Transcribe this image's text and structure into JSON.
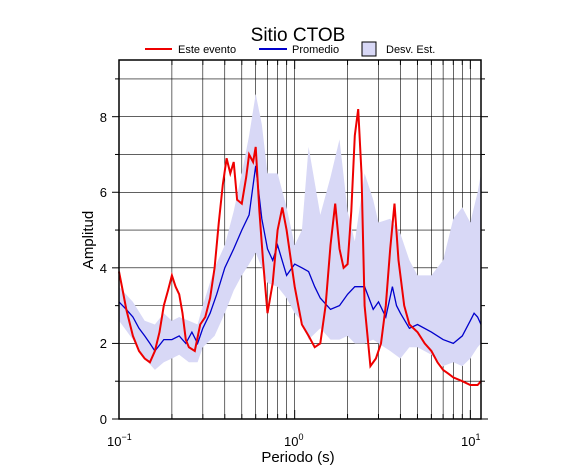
{
  "chart_data": {
    "type": "line",
    "title": "Sitio CTOB",
    "xlabel": "Periodo (s)",
    "ylabel": "Amplitud",
    "x_scale": "log",
    "xlim": [
      0.1,
      11.5
    ],
    "ylim": [
      0,
      9.5
    ],
    "x_ticks": [
      {
        "value": 0.1,
        "base": "10",
        "exp": "−1"
      },
      {
        "value": 1,
        "base": "10",
        "exp": "0"
      },
      {
        "value": 10,
        "base": "10",
        "exp": "1"
      }
    ],
    "y_ticks": [
      {
        "value": 0,
        "label": "0"
      },
      {
        "value": 2,
        "label": "2"
      },
      {
        "value": 4,
        "label": "4"
      },
      {
        "value": 6,
        "label": "6"
      },
      {
        "value": 8,
        "label": "8"
      }
    ],
    "grid": true,
    "legend_position": "top",
    "legend": [
      {
        "label": "Este evento",
        "kind": "line",
        "color": "#ee0000"
      },
      {
        "label": "Promedio",
        "kind": "line",
        "color": "#0000cc"
      },
      {
        "label": "Desv. Est.",
        "kind": "patch",
        "color": "#d8d8f6"
      }
    ],
    "std_band": {
      "name": "Desv. Est.",
      "color": "#d8d8f6",
      "x": [
        0.1,
        0.12,
        0.14,
        0.16,
        0.18,
        0.2,
        0.22,
        0.25,
        0.28,
        0.3,
        0.35,
        0.4,
        0.45,
        0.5,
        0.55,
        0.6,
        0.65,
        0.7,
        0.8,
        0.9,
        1.0,
        1.1,
        1.2,
        1.4,
        1.6,
        1.8,
        2.0,
        2.2,
        2.5,
        2.8,
        3.0,
        3.5,
        4.0,
        4.5,
        5.0,
        6.0,
        7.0,
        8.0,
        9.0,
        10.0,
        11.0,
        11.5
      ],
      "upper": [
        3.5,
        3.1,
        2.6,
        2.5,
        2.8,
        2.6,
        2.7,
        2.6,
        2.5,
        3.0,
        4.0,
        4.6,
        5.5,
        6.5,
        7.5,
        8.6,
        7.8,
        6.5,
        6.5,
        5.6,
        4.6,
        5.0,
        7.2,
        5.4,
        6.4,
        7.4,
        5.5,
        4.7,
        6.5,
        5.8,
        5.2,
        5.3,
        4.9,
        4.2,
        3.8,
        3.8,
        4.2,
        5.3,
        5.6,
        5.2,
        6.0,
        6.5
      ],
      "lower": [
        2.6,
        2.1,
        1.6,
        1.3,
        1.5,
        1.6,
        1.7,
        1.5,
        1.5,
        1.9,
        2.2,
        2.8,
        3.4,
        3.8,
        4.1,
        4.4,
        4.0,
        3.6,
        3.5,
        3.2,
        2.8,
        2.6,
        2.1,
        2.4,
        2.1,
        2.1,
        2.2,
        2.0,
        2.0,
        2.1,
        2.0,
        1.8,
        1.6,
        1.9,
        1.9,
        1.7,
        1.4,
        1.5,
        1.4,
        1.6,
        1.9,
        2.0
      ]
    },
    "series": [
      {
        "name": "Promedio",
        "color": "#0000cc",
        "x": [
          0.1,
          0.11,
          0.12,
          0.13,
          0.14,
          0.15,
          0.16,
          0.18,
          0.2,
          0.22,
          0.24,
          0.26,
          0.28,
          0.3,
          0.33,
          0.36,
          0.4,
          0.45,
          0.5,
          0.55,
          0.6,
          0.65,
          0.7,
          0.75,
          0.8,
          0.9,
          1.0,
          1.1,
          1.2,
          1.3,
          1.4,
          1.6,
          1.8,
          2.0,
          2.2,
          2.5,
          2.8,
          3.0,
          3.3,
          3.6,
          3.8,
          4.0,
          4.5,
          5.0,
          6.0,
          7.0,
          8.0,
          9.0,
          10.0,
          10.5,
          11.0,
          11.5
        ],
        "values": [
          3.1,
          2.9,
          2.7,
          2.4,
          2.2,
          2.0,
          1.8,
          2.1,
          2.1,
          2.2,
          2.0,
          2.3,
          2.0,
          2.4,
          2.8,
          3.3,
          4.0,
          4.5,
          5.0,
          5.4,
          6.7,
          5.3,
          4.5,
          4.2,
          4.6,
          3.8,
          4.1,
          4.0,
          3.9,
          3.5,
          3.2,
          2.9,
          3.0,
          3.3,
          3.5,
          3.5,
          2.9,
          3.1,
          2.7,
          3.5,
          3.0,
          2.8,
          2.4,
          2.5,
          2.3,
          2.1,
          2.0,
          2.2,
          2.6,
          2.8,
          2.7,
          2.5
        ]
      },
      {
        "name": "Este evento",
        "color": "#ee0000",
        "x": [
          0.1,
          0.105,
          0.11,
          0.12,
          0.13,
          0.14,
          0.15,
          0.16,
          0.17,
          0.18,
          0.19,
          0.2,
          0.21,
          0.22,
          0.23,
          0.24,
          0.25,
          0.27,
          0.29,
          0.31,
          0.33,
          0.35,
          0.37,
          0.39,
          0.41,
          0.43,
          0.45,
          0.47,
          0.5,
          0.53,
          0.55,
          0.58,
          0.6,
          0.63,
          0.66,
          0.7,
          0.75,
          0.8,
          0.85,
          0.9,
          1.0,
          1.1,
          1.2,
          1.3,
          1.4,
          1.5,
          1.6,
          1.7,
          1.8,
          1.9,
          2.0,
          2.1,
          2.2,
          2.3,
          2.4,
          2.5,
          2.7,
          2.9,
          3.1,
          3.3,
          3.5,
          3.7,
          3.9,
          4.2,
          4.5,
          5.0,
          5.5,
          6.0,
          6.5,
          7.0,
          7.5,
          8.0,
          9.0,
          10.0,
          11.0,
          11.5
        ],
        "values": [
          3.9,
          3.4,
          2.9,
          2.2,
          1.8,
          1.6,
          1.5,
          1.8,
          2.3,
          3.0,
          3.4,
          3.8,
          3.5,
          3.3,
          2.8,
          2.1,
          1.9,
          1.8,
          2.5,
          2.7,
          3.2,
          4.0,
          5.2,
          6.2,
          6.9,
          6.5,
          6.8,
          5.8,
          5.7,
          6.4,
          7.0,
          6.8,
          7.2,
          5.5,
          4.2,
          2.8,
          3.6,
          5.0,
          5.6,
          5.0,
          3.5,
          2.5,
          2.2,
          1.9,
          2.0,
          3.0,
          4.6,
          5.7,
          4.5,
          4.0,
          4.1,
          5.5,
          7.5,
          8.2,
          6.5,
          3.0,
          1.4,
          1.6,
          2.0,
          3.0,
          4.5,
          5.7,
          4.2,
          3.0,
          2.5,
          2.3,
          2.0,
          1.8,
          1.5,
          1.3,
          1.2,
          1.1,
          1.0,
          0.9,
          0.9,
          1.0
        ]
      }
    ]
  }
}
